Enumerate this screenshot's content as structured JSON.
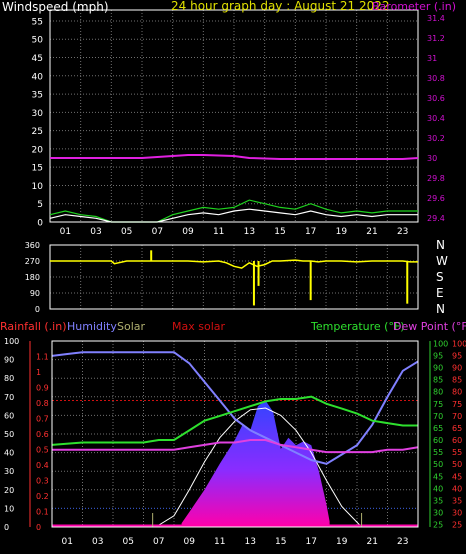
{
  "header": {
    "windspeed_label": "Windspeed (mph)",
    "title": "24 hour graph day : August 21 2022",
    "barometer_label": "Barometer (.in)"
  },
  "compass": [
    "N",
    "W",
    "S",
    "E",
    "N"
  ],
  "lower_header": {
    "rainfall": "Rainfall (.in)",
    "humidity": "Humidity",
    "solar": "Solar",
    "max_solar": "Max solar",
    "temperature": "Temperature (°F)",
    "dew_point": "Dew Point (°F)"
  },
  "colors": {
    "background": "#000000",
    "frame": "#ffffff",
    "grid": "#707070",
    "wind_speed": "#ffffff",
    "wind_gust": "#1fd21f",
    "barometer": "#e020e0",
    "barometer_axis": "#d010d0",
    "wind_direction": "#ffff00",
    "title": "#e0e000",
    "rainfall": "#ff3030",
    "humidity": "#8080ff",
    "solar": "#b0b070",
    "max_solar": "#d01010",
    "temperature": "#2ee02e",
    "dew_point": "#e040e0",
    "temp_axis": "#2fd12f",
    "solar_fill_top": "#3344ff",
    "solar_fill_bottom": "#ff00aa"
  },
  "chart_data": [
    {
      "type": "line",
      "name": "wind_barometer",
      "hour_ticks": [
        "01",
        "03",
        "05",
        "07",
        "09",
        "11",
        "13",
        "15",
        "17",
        "19",
        "21",
        "23"
      ],
      "wind_axis": {
        "ylim": [
          0,
          58
        ],
        "ticks": [
          0,
          5,
          10,
          15,
          20,
          25,
          30,
          35,
          40,
          45,
          50,
          55
        ]
      },
      "barometer_axis": {
        "ylim": [
          29.36,
          31.48
        ],
        "ticks": [
          "29.4",
          "29.6",
          "29.8",
          "30",
          "30.2",
          "30.4",
          "30.6",
          "30.8",
          "31",
          "31.2",
          "31.4"
        ]
      },
      "series": [
        {
          "name": "Barometer",
          "x": [
            0,
            2,
            4,
            6,
            8,
            9,
            10,
            12,
            13,
            15,
            17,
            19,
            21,
            23,
            24
          ],
          "values": [
            30.0,
            30.0,
            30.0,
            30.0,
            30.02,
            30.03,
            30.03,
            30.02,
            30.0,
            29.99,
            29.99,
            29.99,
            29.99,
            29.99,
            30.0
          ]
        },
        {
          "name": "Windspeed",
          "x": [
            0,
            1,
            2,
            3,
            4,
            7,
            8,
            9,
            10,
            11,
            12,
            13,
            14,
            15,
            16,
            17,
            18,
            19,
            20,
            21,
            22,
            23,
            24
          ],
          "values": [
            1,
            2,
            1.5,
            1,
            0,
            0,
            1,
            2,
            2.5,
            2,
            3,
            3.5,
            3,
            2.5,
            2,
            3,
            2,
            1.5,
            2,
            1.5,
            2,
            2,
            2
          ]
        },
        {
          "name": "Gust",
          "x": [
            0,
            1,
            2,
            3,
            4,
            7,
            8,
            9,
            10,
            11,
            12,
            13,
            14,
            15,
            16,
            17,
            18,
            19,
            20,
            21,
            22,
            23,
            24
          ],
          "values": [
            2,
            3,
            2,
            1.5,
            0,
            0,
            2,
            3,
            4,
            3.5,
            4,
            6,
            5,
            4,
            3.5,
            5,
            3.5,
            2.5,
            3,
            2.5,
            3,
            3,
            3
          ]
        }
      ]
    },
    {
      "type": "line",
      "name": "wind_direction",
      "y_ticks": [
        0,
        90,
        180,
        270,
        360
      ],
      "ylim": [
        0,
        360
      ],
      "series": [
        {
          "name": "Wind direction",
          "x": [
            0,
            3,
            4,
            4.2,
            5,
            7,
            9,
            10,
            11,
            11.5,
            12,
            12.5,
            13,
            13.5,
            14,
            14.5,
            15,
            16,
            16.5,
            17,
            17.5,
            18,
            19,
            20,
            21,
            22,
            23,
            23.5,
            24
          ],
          "values": [
            270,
            270,
            270,
            255,
            270,
            270,
            270,
            265,
            270,
            260,
            240,
            230,
            260,
            240,
            250,
            270,
            270,
            275,
            270,
            270,
            265,
            270,
            270,
            265,
            270,
            270,
            270,
            265,
            265
          ]
        },
        {
          "name": "Spikes",
          "x": [
            6.6,
            13.3,
            13.6,
            17.0,
            23.3
          ],
          "values": [
            330,
            20,
            130,
            50,
            30
          ]
        }
      ]
    },
    {
      "type": "area",
      "name": "rain_humidity_solar_temp",
      "rain_axis": {
        "ylim": [
          0,
          1.2
        ],
        "ticks": [
          "0",
          "0.1",
          "0.2",
          "0.3",
          "0.4",
          "0.5",
          "0.6",
          "0.7",
          "0.8",
          "0.9",
          "1",
          "1.1"
        ]
      },
      "humidity_axis": {
        "ylim": [
          0,
          100
        ],
        "ticks": [
          0,
          10,
          20,
          30,
          40,
          50,
          60,
          70,
          80,
          90,
          100
        ]
      },
      "temperature_axis": {
        "ylim": [
          24,
          101
        ],
        "ticks": [
          25,
          30,
          35,
          40,
          45,
          50,
          55,
          60,
          65,
          70,
          75,
          80,
          85,
          90,
          95,
          100
        ]
      },
      "series": [
        {
          "name": "Humidity",
          "x": [
            0,
            1,
            2,
            4,
            6,
            7,
            8,
            9,
            10,
            11,
            12,
            13,
            14,
            15,
            16,
            17,
            18,
            19,
            20,
            21,
            22,
            23,
            24
          ],
          "values": [
            92,
            93,
            94,
            94,
            94,
            94,
            94,
            88,
            78,
            68,
            58,
            52,
            48,
            44,
            40,
            36,
            34,
            39,
            44,
            55,
            70,
            84,
            89
          ]
        },
        {
          "name": "Temperature",
          "x": [
            0,
            2,
            4,
            6,
            7,
            8,
            9,
            10,
            11,
            12,
            13,
            14,
            15,
            16,
            17,
            18,
            19,
            20,
            21,
            22,
            23,
            24
          ],
          "values": [
            58,
            59,
            59,
            59,
            60,
            60,
            64,
            68,
            70,
            72,
            74,
            76,
            77,
            77,
            78,
            75,
            73,
            71,
            68,
            67,
            66,
            66
          ]
        },
        {
          "name": "Dew Point",
          "x": [
            0,
            2,
            4,
            6,
            7,
            8,
            9,
            10,
            11,
            12,
            13,
            14,
            15,
            16,
            17,
            18,
            19,
            20,
            21,
            22,
            23,
            24
          ],
          "values": [
            56,
            56,
            56,
            56,
            56,
            56,
            57,
            58,
            59,
            59,
            60,
            60,
            58,
            57,
            56,
            55,
            55,
            55,
            55,
            56,
            56,
            57
          ]
        },
        {
          "name": "Max solar",
          "x": [
            0,
            24
          ],
          "values": [
            68,
            68
          ]
        },
        {
          "name": "Solar",
          "x": [
            8.5,
            9,
            10,
            11,
            12,
            12.5,
            13,
            13.5,
            14,
            14.5,
            15,
            15.5,
            16,
            16.5,
            17,
            17.5,
            18,
            18.2
          ],
          "values": [
            2,
            8,
            20,
            34,
            47,
            55,
            52,
            65,
            68,
            62,
            42,
            48,
            44,
            46,
            44,
            30,
            12,
            3
          ]
        },
        {
          "name": "Max solar curve",
          "x": [
            6.8,
            8,
            9,
            10,
            11,
            12,
            13,
            14,
            15,
            16,
            17,
            18,
            19,
            20.3
          ],
          "values": [
            0,
            6,
            20,
            35,
            48,
            57,
            63,
            64,
            60,
            52,
            40,
            25,
            11,
            0
          ]
        }
      ]
    }
  ]
}
